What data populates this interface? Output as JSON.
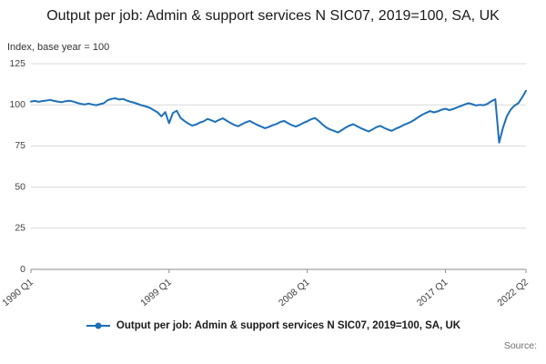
{
  "title": "Output per job: Admin & support services N SIC07, 2019=100, SA, UK",
  "axis_note": "Index, base year = 100",
  "legend_label": "Output per job: Admin & support services N SIC07, 2019=100, SA, UK",
  "source_label": "Source:",
  "colors": {
    "line": "#1d70b8",
    "grid": "#d9d9d9",
    "axis": "#8c8c8c",
    "tick_text": "#414042"
  },
  "chart_data": {
    "type": "line",
    "title": "Output per job: Admin & support services N SIC07, 2019=100, SA, UK",
    "xlabel": "",
    "ylabel": "Index, base year = 100",
    "ylim": [
      0,
      125
    ],
    "grid": true,
    "legend_position": "bottom",
    "x_unit": "quarter",
    "x_range": [
      "1990 Q1",
      "2022 Q2"
    ],
    "y_ticks": [
      0,
      25,
      50,
      75,
      100,
      125
    ],
    "x_ticks": [
      {
        "label": "1990 Q1",
        "index": 0
      },
      {
        "label": "1999 Q1",
        "index": 36
      },
      {
        "label": "2008 Q1",
        "index": 72
      },
      {
        "label": "2017 Q1",
        "index": 108
      },
      {
        "label": "2022 Q2",
        "index": 129
      }
    ],
    "series_name": "Output per job: Admin & support services N SIC07, 2019=100, SA, UK",
    "values": [
      102.0,
      102.4,
      101.8,
      102.3,
      102.6,
      103.0,
      102.4,
      102.0,
      101.6,
      102.2,
      102.5,
      102.0,
      101.2,
      100.6,
      100.2,
      100.8,
      100.2,
      99.8,
      100.4,
      101.0,
      102.8,
      103.6,
      104.0,
      103.2,
      103.6,
      102.6,
      101.8,
      101.2,
      100.4,
      99.6,
      99.0,
      98.2,
      96.8,
      95.4,
      93.0,
      95.6,
      88.8,
      95.0,
      96.4,
      92.0,
      90.2,
      88.6,
      87.4,
      88.0,
      89.2,
      90.0,
      91.4,
      90.6,
      89.6,
      90.8,
      91.8,
      90.4,
      89.0,
      87.8,
      87.0,
      88.2,
      89.4,
      90.2,
      89.0,
      87.8,
      86.8,
      85.8,
      86.6,
      87.6,
      88.4,
      89.6,
      90.2,
      88.8,
      87.6,
      86.8,
      87.8,
      89.0,
      90.0,
      91.2,
      92.0,
      90.2,
      88.0,
      86.2,
      85.0,
      84.2,
      83.2,
      84.6,
      86.2,
      87.4,
      88.2,
      87.0,
      85.8,
      84.8,
      83.8,
      85.0,
      86.4,
      87.2,
      86.0,
      85.0,
      84.2,
      85.4,
      86.4,
      87.6,
      88.6,
      89.6,
      91.0,
      92.6,
      94.0,
      95.2,
      96.2,
      95.4,
      96.0,
      97.0,
      97.6,
      96.8,
      97.4,
      98.4,
      99.2,
      100.2,
      101.0,
      100.4,
      99.6,
      100.0,
      99.8,
      100.6,
      102.2,
      103.4,
      77.0,
      86.0,
      93.0,
      97.0,
      99.5,
      101.0,
      104.5,
      108.5
    ]
  }
}
